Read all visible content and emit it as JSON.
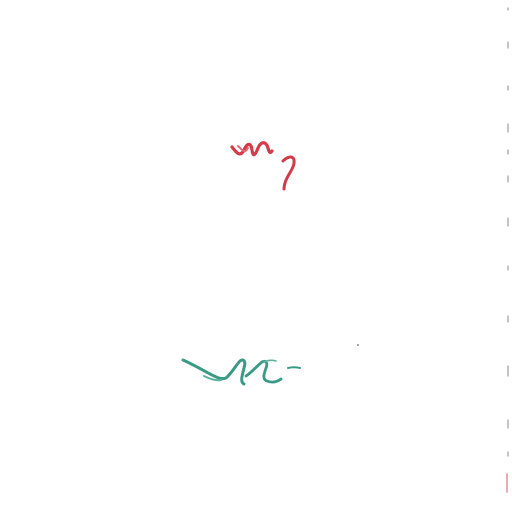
{
  "strokes": {
    "upper_mark": {
      "color": "#d33a4a",
      "description_icon": "red-scribble-icon"
    },
    "lower_mark": {
      "color": "#3a9a86",
      "description_icon": "teal-scribble-icon"
    },
    "edge_marks": {
      "color": "#9aa0a6",
      "description_icon": "margin-tick-icon"
    }
  }
}
